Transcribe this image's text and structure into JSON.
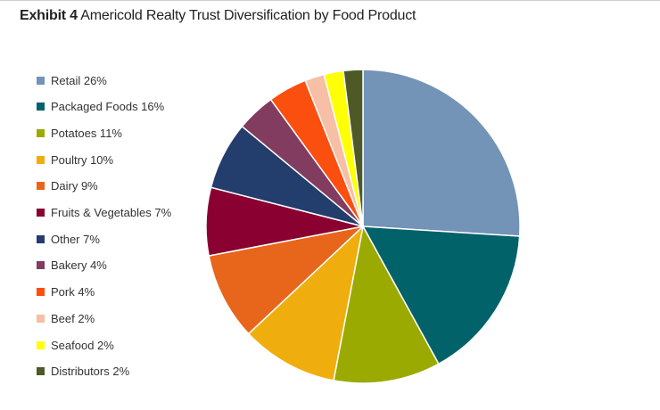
{
  "title": {
    "prefix": "Exhibit 4",
    "text": "Americold Realty Trust Diversification by Food Product"
  },
  "chart_data": {
    "type": "pie",
    "title": "Exhibit 4 Americold Realty Trust Diversification by Food Product",
    "unit": "%",
    "slices": [
      {
        "label": "Retail 26%",
        "name": "Retail",
        "value": 26,
        "color": "#7393b7"
      },
      {
        "label": "Packaged Foods 16%",
        "name": "Packaged Foods",
        "value": 16,
        "color": "#02626a"
      },
      {
        "label": "Potatoes 11%",
        "name": "Potatoes",
        "value": 11,
        "color": "#9aaa00"
      },
      {
        "label": "Poultry 10%",
        "name": "Poultry",
        "value": 10,
        "color": "#efae0e"
      },
      {
        "label": "Dairy 9%",
        "name": "Dairy",
        "value": 9,
        "color": "#e8661c"
      },
      {
        "label": "Fruits & Vegetables 7%",
        "name": "Fruits & Vegetables",
        "value": 7,
        "color": "#8a0030"
      },
      {
        "label": "Other 7%",
        "name": "Other",
        "value": 7,
        "color": "#233d6d"
      },
      {
        "label": "Bakery 4%",
        "name": "Bakery",
        "value": 4,
        "color": "#813c5f"
      },
      {
        "label": "Pork 4%",
        "name": "Pork",
        "value": 4,
        "color": "#fb4f0f"
      },
      {
        "label": "Beef 2%",
        "name": "Beef",
        "value": 2,
        "color": "#f6bfa6"
      },
      {
        "label": "Seafood 2%",
        "name": "Seafood",
        "value": 2,
        "color": "#ffff05"
      },
      {
        "label": "Distributors 2%",
        "name": "Distributors",
        "value": 2,
        "color": "#4d5a28"
      }
    ],
    "legend_position": "left"
  }
}
